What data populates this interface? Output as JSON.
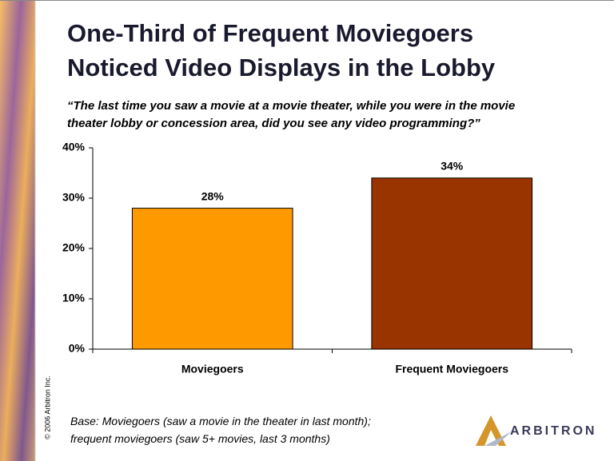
{
  "chart_data": {
    "type": "bar",
    "title": [
      "One-Third of Frequent Moviegoers",
      "Noticed Video Displays in the Lobby"
    ],
    "subtitle": [
      "“The last time you saw a movie at a movie theater, while you were in the movie",
      "theater lobby or concession area, did you see any video programming?”"
    ],
    "categories": [
      "Moviegoers",
      "Frequent Moviegoers"
    ],
    "values": [
      28,
      34
    ],
    "value_labels": [
      "28%",
      "34%"
    ],
    "colors": [
      "#ff9900",
      "#993300"
    ],
    "ylim": [
      0,
      40
    ],
    "yticks": [
      {
        "value": 0,
        "label": "0%"
      },
      {
        "value": 10,
        "label": "10%"
      },
      {
        "value": 20,
        "label": "20%"
      },
      {
        "value": 30,
        "label": "30%"
      },
      {
        "value": 40,
        "label": "40%"
      }
    ],
    "grid": false,
    "note": [
      "Base:  Moviegoers (saw a movie in the theater in last month);",
      "frequent moviegoers (saw 5+ movies, last 3 months)"
    ],
    "copyright": "© 2006 Arbitron Inc.",
    "logo": "ARBITRON"
  }
}
